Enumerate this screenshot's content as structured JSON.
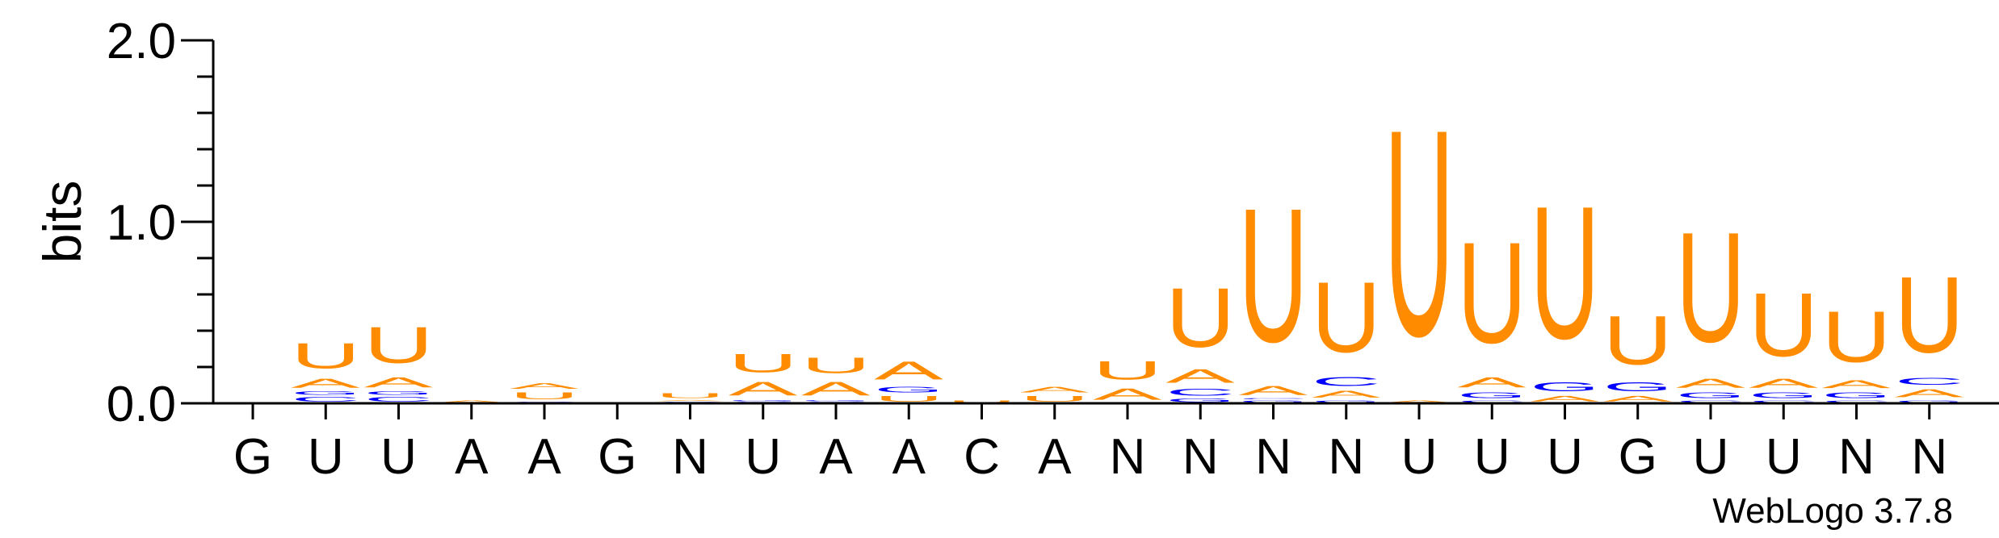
{
  "chart_data": {
    "type": "sequence-logo",
    "ylabel": "bits",
    "ylim": [
      0,
      2.0
    ],
    "yticks": [
      "0.0",
      "1.0",
      "2.0"
    ],
    "categories": [
      "G",
      "U",
      "U",
      "A",
      "A",
      "G",
      "N",
      "U",
      "A",
      "A",
      "C",
      "A",
      "N",
      "N",
      "N",
      "N",
      "U",
      "U",
      "U",
      "G",
      "U",
      "U",
      "N",
      "N"
    ],
    "colors": {
      "U": "#FF8C00",
      "A": "#FF8C00",
      "G": "#0000FF",
      "C": "#0000FF"
    },
    "positions": [
      [],
      [
        {
          "l": "C",
          "h": 0.04
        },
        {
          "l": "G",
          "h": 0.03
        },
        {
          "l": "A",
          "h": 0.08
        },
        {
          "l": "U",
          "h": 0.22
        }
      ],
      [
        {
          "l": "C",
          "h": 0.04
        },
        {
          "l": "G",
          "h": 0.03
        },
        {
          "l": "A",
          "h": 0.09
        },
        {
          "l": "U",
          "h": 0.32
        }
      ],
      [
        {
          "l": "A",
          "h": 0.02
        }
      ],
      [
        {
          "l": "C",
          "h": 0.01
        },
        {
          "l": "U",
          "h": 0.06
        },
        {
          "l": "A",
          "h": 0.05
        }
      ],
      [],
      [
        {
          "l": "C",
          "h": 0.01
        },
        {
          "l": "A",
          "h": 0.01
        },
        {
          "l": "U",
          "h": 0.04
        }
      ],
      [
        {
          "l": "C",
          "h": 0.01
        },
        {
          "l": "G",
          "h": 0.01
        },
        {
          "l": "A",
          "h": 0.12
        },
        {
          "l": "U",
          "h": 0.16
        }
      ],
      [
        {
          "l": "C",
          "h": 0.01
        },
        {
          "l": "G",
          "h": 0.01
        },
        {
          "l": "A",
          "h": 0.12
        },
        {
          "l": "U",
          "h": 0.14
        }
      ],
      [
        {
          "l": "U",
          "h": 0.05
        },
        {
          "l": "G",
          "h": 0.05
        },
        {
          "l": "A",
          "h": 0.16
        }
      ],
      [
        {
          "l": "U",
          "h": 0.02
        }
      ],
      [
        {
          "l": "U",
          "h": 0.05
        },
        {
          "l": "A",
          "h": 0.05
        }
      ],
      [
        {
          "l": "A",
          "h": 0.1
        },
        {
          "l": "U",
          "h": 0.16
        }
      ],
      [
        {
          "l": "G",
          "h": 0.03
        },
        {
          "l": "C",
          "h": 0.06
        },
        {
          "l": "A",
          "h": 0.12
        },
        {
          "l": "U",
          "h": 0.52
        }
      ],
      [
        {
          "l": "G",
          "h": 0.02
        },
        {
          "l": "C",
          "h": 0.01
        },
        {
          "l": "A",
          "h": 0.08
        },
        {
          "l": "U",
          "h": 1.18
        }
      ],
      [
        {
          "l": "G",
          "h": 0.02
        },
        {
          "l": "A",
          "h": 0.06
        },
        {
          "l": "C",
          "h": 0.08
        },
        {
          "l": "U",
          "h": 0.62
        }
      ],
      [
        {
          "l": "A",
          "h": 0.02
        },
        {
          "l": "U",
          "h": 1.82
        }
      ],
      [
        {
          "l": "C",
          "h": 0.02
        },
        {
          "l": "G",
          "h": 0.05
        },
        {
          "l": "A",
          "h": 0.09
        },
        {
          "l": "U",
          "h": 0.89
        }
      ],
      [
        {
          "l": "A",
          "h": 0.05
        },
        {
          "l": "G",
          "h": 0.08
        },
        {
          "l": "U",
          "h": 1.17
        }
      ],
      [
        {
          "l": "A",
          "h": 0.05
        },
        {
          "l": "G",
          "h": 0.08
        },
        {
          "l": "U",
          "h": 0.43
        }
      ],
      [
        {
          "l": "C",
          "h": 0.02
        },
        {
          "l": "G",
          "h": 0.05
        },
        {
          "l": "A",
          "h": 0.08
        },
        {
          "l": "U",
          "h": 0.97
        }
      ],
      [
        {
          "l": "C",
          "h": 0.02
        },
        {
          "l": "G",
          "h": 0.05
        },
        {
          "l": "A",
          "h": 0.08
        },
        {
          "l": "U",
          "h": 0.56
        }
      ],
      [
        {
          "l": "C",
          "h": 0.02
        },
        {
          "l": "G",
          "h": 0.05
        },
        {
          "l": "A",
          "h": 0.07
        },
        {
          "l": "U",
          "h": 0.45
        }
      ],
      [
        {
          "l": "G",
          "h": 0.02
        },
        {
          "l": "A",
          "h": 0.07
        },
        {
          "l": "C",
          "h": 0.06
        },
        {
          "l": "U",
          "h": 0.67
        }
      ]
    ]
  },
  "footer": {
    "credit": "WebLogo 3.7.8"
  }
}
